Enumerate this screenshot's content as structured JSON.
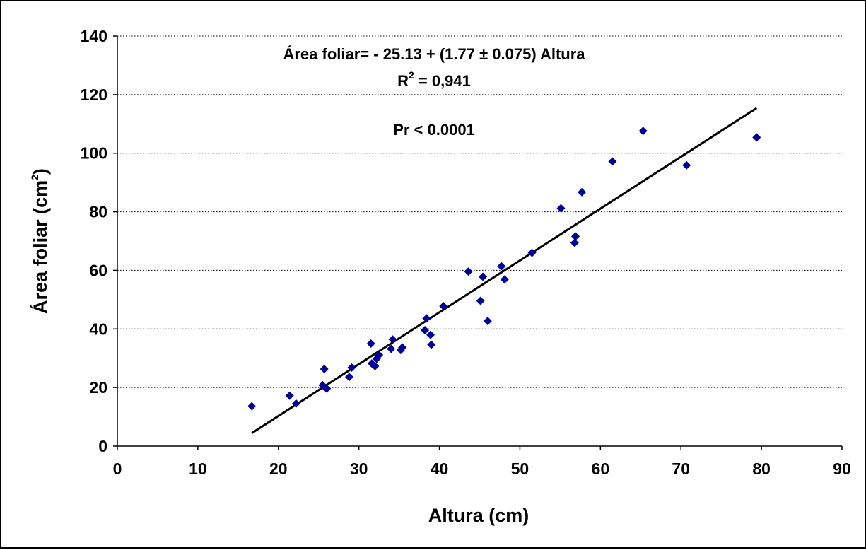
{
  "chart_data": {
    "type": "scatter",
    "title": "",
    "xlabel": "Altura (cm)",
    "ylabel_main": "Área foliar (cm",
    "ylabel_sup": "2",
    "ylabel_close": ")",
    "xlim": [
      0,
      90
    ],
    "ylim": [
      0,
      140
    ],
    "xticks": [
      0,
      10,
      20,
      30,
      40,
      50,
      60,
      70,
      80,
      90
    ],
    "yticks": [
      0,
      20,
      40,
      60,
      80,
      100,
      120,
      140
    ],
    "grid": "horizontal dotted",
    "marker_color": "#000099",
    "line_color": "#000000",
    "points": [
      {
        "x": 16.7,
        "y": 13.6
      },
      {
        "x": 21.4,
        "y": 17.2
      },
      {
        "x": 22.2,
        "y": 14.5
      },
      {
        "x": 25.5,
        "y": 20.8
      },
      {
        "x": 25.7,
        "y": 26.3
      },
      {
        "x": 26.0,
        "y": 19.6
      },
      {
        "x": 28.8,
        "y": 23.6
      },
      {
        "x": 29.1,
        "y": 26.8
      },
      {
        "x": 31.5,
        "y": 35.0
      },
      {
        "x": 31.6,
        "y": 28.2
      },
      {
        "x": 32.0,
        "y": 27.3
      },
      {
        "x": 32.2,
        "y": 29.8
      },
      {
        "x": 32.5,
        "y": 31.1
      },
      {
        "x": 34.0,
        "y": 33.2
      },
      {
        "x": 34.2,
        "y": 36.4
      },
      {
        "x": 35.2,
        "y": 32.8
      },
      {
        "x": 35.4,
        "y": 33.7
      },
      {
        "x": 38.2,
        "y": 39.6
      },
      {
        "x": 38.4,
        "y": 43.6
      },
      {
        "x": 38.9,
        "y": 38.0
      },
      {
        "x": 39.0,
        "y": 34.6
      },
      {
        "x": 40.5,
        "y": 47.8
      },
      {
        "x": 43.6,
        "y": 59.6
      },
      {
        "x": 45.1,
        "y": 49.6
      },
      {
        "x": 45.4,
        "y": 57.8
      },
      {
        "x": 46.0,
        "y": 42.7
      },
      {
        "x": 47.7,
        "y": 61.4
      },
      {
        "x": 48.1,
        "y": 56.9
      },
      {
        "x": 51.5,
        "y": 66.0
      },
      {
        "x": 55.1,
        "y": 81.2
      },
      {
        "x": 56.8,
        "y": 69.4
      },
      {
        "x": 56.9,
        "y": 71.6
      },
      {
        "x": 57.7,
        "y": 86.7
      },
      {
        "x": 61.5,
        "y": 97.2
      },
      {
        "x": 65.3,
        "y": 107.6
      },
      {
        "x": 70.7,
        "y": 95.9
      },
      {
        "x": 79.4,
        "y": 105.4
      }
    ],
    "trendline": {
      "intercept": -25.13,
      "slope": 1.77,
      "x_start": 16.7,
      "x_end": 79.4
    },
    "annotations": {
      "equation": "Área foliar= - 25.13 + (1.77 ± 0.075) Altura",
      "r2_prefix": "R",
      "r2_sup": "2",
      "r2_value": " = 0,941",
      "pvalue": "Pr < 0.0001"
    }
  }
}
